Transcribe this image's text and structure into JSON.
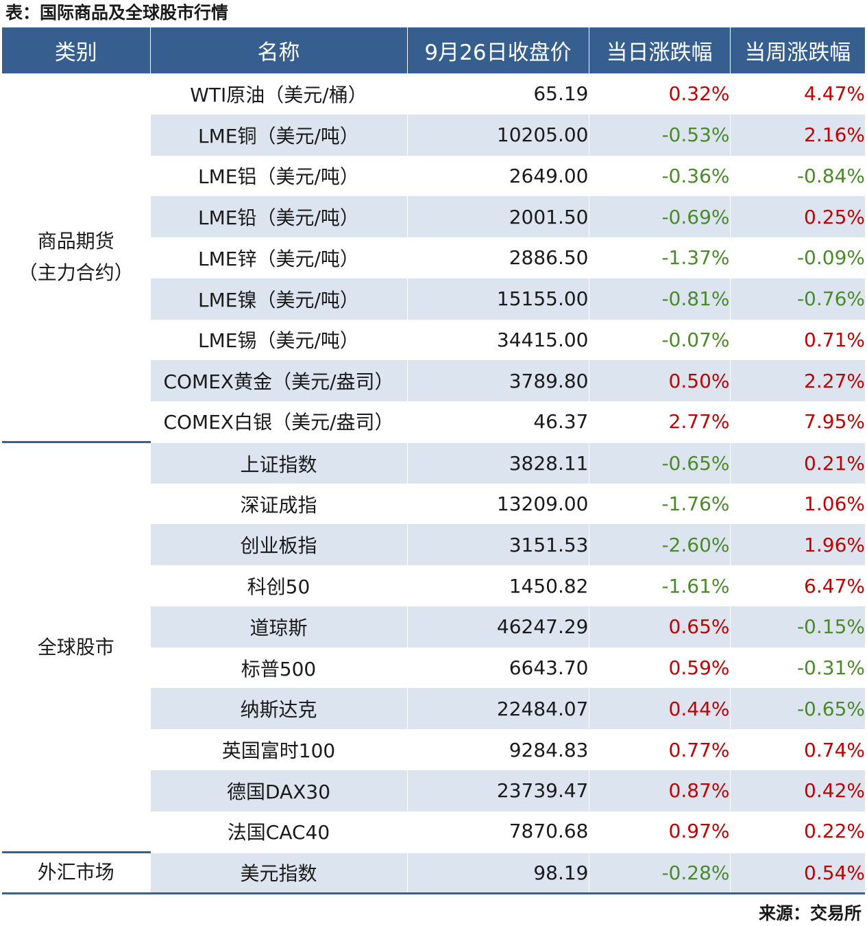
{
  "title": "表：国际商品及全球股市行情",
  "header": {
    "category": "类别",
    "name": "名称",
    "close": "9月26日收盘价",
    "day_change": "当日涨跌幅",
    "week_change": "当周涨跌幅"
  },
  "groups": [
    {
      "category_lines": [
        "商品期货",
        "（主力合约）"
      ],
      "rows": [
        {
          "name": "WTI原油（美元/桶）",
          "close": "65.19",
          "day": "0.32%",
          "week": "4.47%"
        },
        {
          "name": "LME铜（美元/吨）",
          "close": "10205.00",
          "day": "-0.53%",
          "week": "2.16%"
        },
        {
          "name": "LME铝（美元/吨）",
          "close": "2649.00",
          "day": "-0.36%",
          "week": "-0.84%"
        },
        {
          "name": "LME铅（美元/吨）",
          "close": "2001.50",
          "day": "-0.69%",
          "week": "0.25%"
        },
        {
          "name": "LME锌（美元/吨）",
          "close": "2886.50",
          "day": "-1.37%",
          "week": "-0.09%"
        },
        {
          "name": "LME镍（美元/吨）",
          "close": "15155.00",
          "day": "-0.81%",
          "week": "-0.76%"
        },
        {
          "name": "LME锡（美元/吨）",
          "close": "34415.00",
          "day": "-0.07%",
          "week": "0.71%"
        },
        {
          "name": "COMEX黄金（美元/盎司）",
          "close": "3789.80",
          "day": "0.50%",
          "week": "2.27%"
        },
        {
          "name": "COMEX白银（美元/盎司）",
          "close": "46.37",
          "day": "2.77%",
          "week": "7.95%"
        }
      ]
    },
    {
      "category_lines": [
        "全球股市"
      ],
      "rows": [
        {
          "name": "上证指数",
          "close": "3828.11",
          "day": "-0.65%",
          "week": "0.21%"
        },
        {
          "name": "深证成指",
          "close": "13209.00",
          "day": "-1.76%",
          "week": "1.06%"
        },
        {
          "name": "创业板指",
          "close": "3151.53",
          "day": "-2.60%",
          "week": "1.96%"
        },
        {
          "name": "科创50",
          "close": "1450.82",
          "day": "-1.61%",
          "week": "6.47%"
        },
        {
          "name": "道琼斯",
          "close": "46247.29",
          "day": "0.65%",
          "week": "-0.15%"
        },
        {
          "name": "标普500",
          "close": "6643.70",
          "day": "0.59%",
          "week": "-0.31%"
        },
        {
          "name": "纳斯达克",
          "close": "22484.07",
          "day": "0.44%",
          "week": "-0.65%"
        },
        {
          "name": "英国富时100",
          "close": "9284.83",
          "day": "0.77%",
          "week": "0.74%"
        },
        {
          "name": "德国DAX30",
          "close": "23739.47",
          "day": "0.87%",
          "week": "0.42%"
        },
        {
          "name": "法国CAC40",
          "close": "7870.68",
          "day": "0.97%",
          "week": "0.22%"
        }
      ]
    },
    {
      "category_lines": [
        "外汇市场"
      ],
      "rows": [
        {
          "name": "美元指数",
          "close": "98.19",
          "day": "-0.28%",
          "week": "0.54%"
        }
      ]
    }
  ],
  "source": "来源：交易所",
  "colors": {
    "header_bg": "#365f8f",
    "stripe_bg": "#dce4ef",
    "up": "#c00000",
    "down": "#4a8a2a"
  }
}
